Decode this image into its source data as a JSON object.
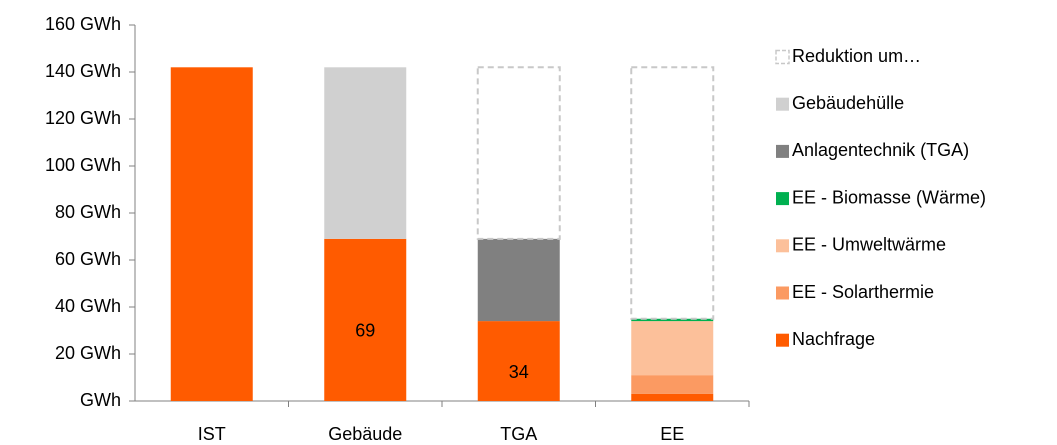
{
  "chart_data": {
    "type": "stacked_bar",
    "categories": [
      "IST",
      "Gebäude",
      "TGA",
      "EE"
    ],
    "series": [
      {
        "name": "Nachfrage",
        "color": "#ff5b00",
        "values": [
          142,
          69,
          34,
          3
        ],
        "value_labels": [
          null,
          "69",
          "34",
          null
        ]
      },
      {
        "name": "EE - Solarthermie",
        "color": "#fb9a62",
        "values": [
          null,
          null,
          null,
          8
        ]
      },
      {
        "name": "EE - Umweltwärme",
        "color": "#fcc09a",
        "values": [
          null,
          null,
          null,
          23
        ]
      },
      {
        "name": "EE - Biomasse (Wärme)",
        "color": "#00b050",
        "values": [
          null,
          null,
          null,
          1
        ]
      },
      {
        "name": "Anlagentechnik (TGA)",
        "color": "#808080",
        "values": [
          null,
          null,
          35,
          null
        ]
      },
      {
        "name": "Gebäudehülle",
        "color": "#d0d0d0",
        "values": [
          null,
          73,
          null,
          null
        ]
      },
      {
        "name": "Reduktion um…",
        "color": "#c8c8c8",
        "style": "dashed",
        "values": [
          null,
          null,
          73,
          107
        ]
      }
    ],
    "ylim": [
      0,
      160
    ],
    "yticks": [
      {
        "value": 0,
        "label": "GWh"
      },
      {
        "value": 20,
        "label": "20 GWh"
      },
      {
        "value": 40,
        "label": "40 GWh"
      },
      {
        "value": 60,
        "label": "60 GWh"
      },
      {
        "value": 80,
        "label": "80 GWh"
      },
      {
        "value": 100,
        "label": "100 GWh"
      },
      {
        "value": 120,
        "label": "120 GWh"
      },
      {
        "value": 140,
        "label": "140 GWh"
      },
      {
        "value": 160,
        "label": "160 GWh"
      }
    ],
    "grid": false,
    "legend": "right"
  }
}
